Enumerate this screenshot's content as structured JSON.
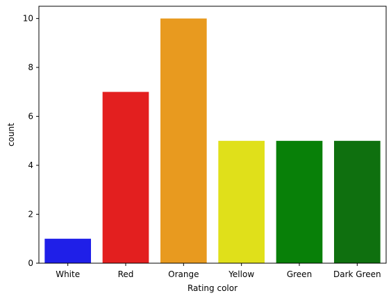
{
  "chart_data": {
    "type": "bar",
    "title": "",
    "xlabel": "Rating color",
    "ylabel": "count",
    "categories": [
      "White",
      "Red",
      "Orange",
      "Yellow",
      "Green",
      "Dark Green"
    ],
    "values": [
      1,
      7,
      10,
      5,
      5,
      5
    ],
    "colors": [
      "#1f1fe8",
      "#e31f1f",
      "#e89a1f",
      "#e0e01a",
      "#088008",
      "#0f700f"
    ],
    "ylim": [
      0,
      10.5
    ],
    "yticks": [
      0,
      2,
      4,
      6,
      8,
      10
    ],
    "grid": false,
    "legend": "none"
  }
}
